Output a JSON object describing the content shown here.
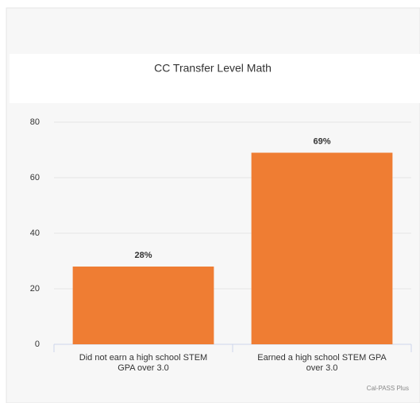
{
  "chart_data": {
    "type": "bar",
    "title": "CC Transfer Level Math",
    "categories": [
      "Did not earn a high school STEM GPA over 3.0",
      "Earned a high school STEM GPA over 3.0"
    ],
    "values": [
      28,
      69
    ],
    "value_labels": [
      "28%",
      "69%"
    ],
    "color": "#ef7d33",
    "ylim": [
      0,
      80
    ],
    "yticks": [
      0,
      20,
      40,
      60,
      80
    ],
    "grid": true,
    "credits": "Cal-PASS Plus"
  }
}
